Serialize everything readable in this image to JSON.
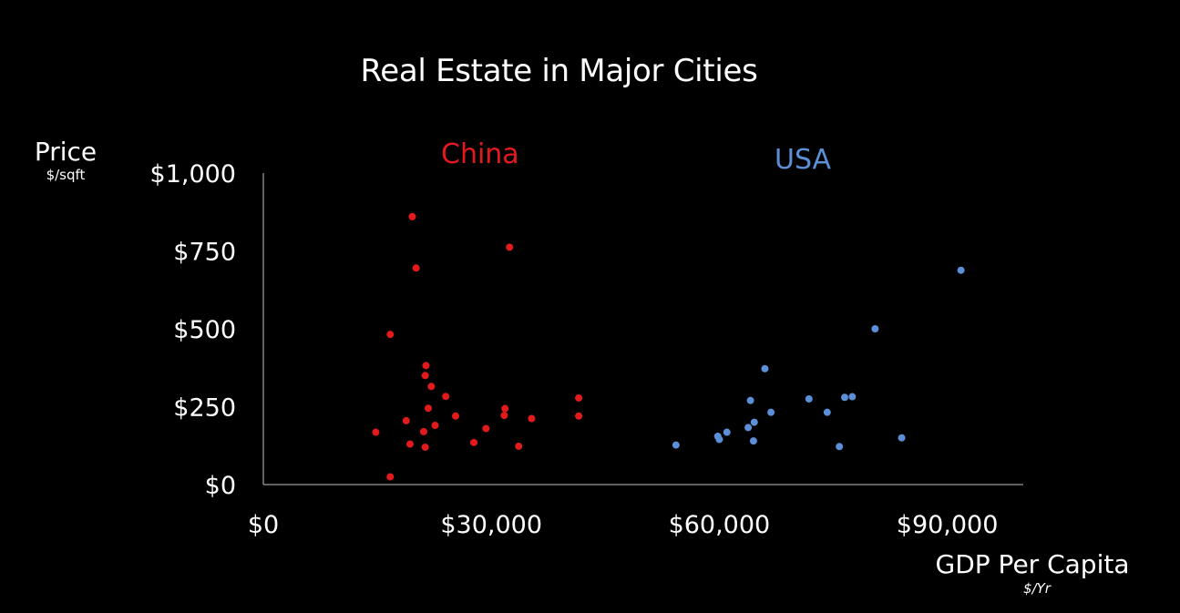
{
  "chart_data": {
    "type": "scatter",
    "title": "Real Estate in Major Cities",
    "ylabel": "Price",
    "ylabel_unit": "$/sqft",
    "xlabel": "GDP Per Capita",
    "xlabel_unit": "$/Yr",
    "xlim": [
      0,
      100000
    ],
    "ylim": [
      0,
      1000
    ],
    "x_ticks": [
      0,
      30000,
      60000,
      90000
    ],
    "x_tick_labels": [
      "$0",
      "$30,000",
      "$60,000",
      "$90,000"
    ],
    "y_ticks": [
      0,
      250,
      500,
      750,
      1000
    ],
    "y_tick_labels": [
      "$0",
      "$250",
      "$500",
      "$750",
      "$1,000"
    ],
    "grid": false,
    "series": [
      {
        "name": "China",
        "color": "#e31a1c",
        "points": [
          [
            14800,
            168
          ],
          [
            16700,
            25
          ],
          [
            16700,
            482
          ],
          [
            18800,
            205
          ],
          [
            19300,
            130
          ],
          [
            19600,
            860
          ],
          [
            20100,
            695
          ],
          [
            21100,
            170
          ],
          [
            21300,
            120
          ],
          [
            21300,
            350
          ],
          [
            21400,
            382
          ],
          [
            21700,
            245
          ],
          [
            22100,
            315
          ],
          [
            22600,
            190
          ],
          [
            24000,
            283
          ],
          [
            25300,
            220
          ],
          [
            27700,
            135
          ],
          [
            29300,
            180
          ],
          [
            31700,
            222
          ],
          [
            31800,
            244
          ],
          [
            32400,
            762
          ],
          [
            33600,
            123
          ],
          [
            35300,
            212
          ],
          [
            41500,
            278
          ],
          [
            41500,
            220
          ]
        ]
      },
      {
        "name": "USA",
        "color": "#5b8fd8",
        "points": [
          [
            54300,
            127
          ],
          [
            59800,
            155
          ],
          [
            60000,
            145
          ],
          [
            61000,
            168
          ],
          [
            63800,
            183
          ],
          [
            64100,
            270
          ],
          [
            64500,
            140
          ],
          [
            64600,
            200
          ],
          [
            66000,
            372
          ],
          [
            66800,
            232
          ],
          [
            71800,
            275
          ],
          [
            74200,
            232
          ],
          [
            75800,
            122
          ],
          [
            76500,
            280
          ],
          [
            77500,
            282
          ],
          [
            80500,
            500
          ],
          [
            84000,
            150
          ],
          [
            91800,
            688
          ]
        ]
      }
    ]
  }
}
